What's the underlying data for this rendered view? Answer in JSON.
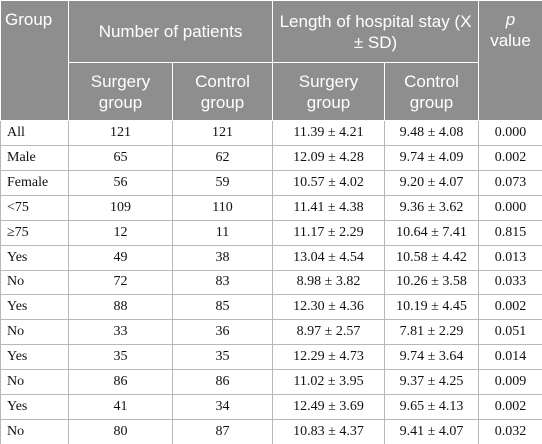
{
  "table": {
    "header": {
      "group": "Group",
      "patients": "Number of patients",
      "stay": "Length of hospital stay (X ± SD)",
      "p_italic": "p",
      "p_rest": "value",
      "sub": [
        "Surgery group",
        "Control group",
        "Surgery group",
        "Control group"
      ]
    },
    "rows": [
      [
        "All",
        "121",
        "121",
        "11.39 ± 4.21",
        "9.48 ± 4.08",
        "0.000"
      ],
      [
        "Male",
        "65",
        "62",
        "12.09 ± 4.28",
        "9.74 ± 4.09",
        "0.002"
      ],
      [
        "Female",
        "56",
        "59",
        "10.57 ± 4.02",
        "9.20 ± 4.07",
        "0.073"
      ],
      [
        "<75",
        "109",
        "110",
        "11.41 ± 4.38",
        "9.36 ± 3.62",
        "0.000"
      ],
      [
        "≥75",
        "12",
        "11",
        "11.17 ± 2.29",
        "10.64 ± 7.41",
        "0.815"
      ],
      [
        "Yes",
        "49",
        "38",
        "13.04 ± 4.54",
        "10.58 ± 4.42",
        "0.013"
      ],
      [
        "No",
        "72",
        "83",
        "8.98 ± 3.82",
        "10.26 ± 3.58",
        "0.033"
      ],
      [
        "Yes",
        "88",
        "85",
        "12.30 ± 4.36",
        "10.19 ± 4.45",
        "0.002"
      ],
      [
        "No",
        "33",
        "36",
        "8.97 ± 2.57",
        "7.81 ± 2.29",
        "0.051"
      ],
      [
        "Yes",
        "35",
        "35",
        "12.29 ± 4.73",
        "9.74 ± 3.64",
        "0.014"
      ],
      [
        "No",
        "86",
        "86",
        "11.02 ± 3.95",
        "9.37 ± 4.25",
        "0.009"
      ],
      [
        "Yes",
        "41",
        "34",
        "12.49 ± 3.69",
        "9.65 ± 4.13",
        "0.002"
      ],
      [
        "No",
        "80",
        "87",
        "10.83 ± 4.37",
        "9.41 ± 4.07",
        "0.032"
      ]
    ]
  }
}
